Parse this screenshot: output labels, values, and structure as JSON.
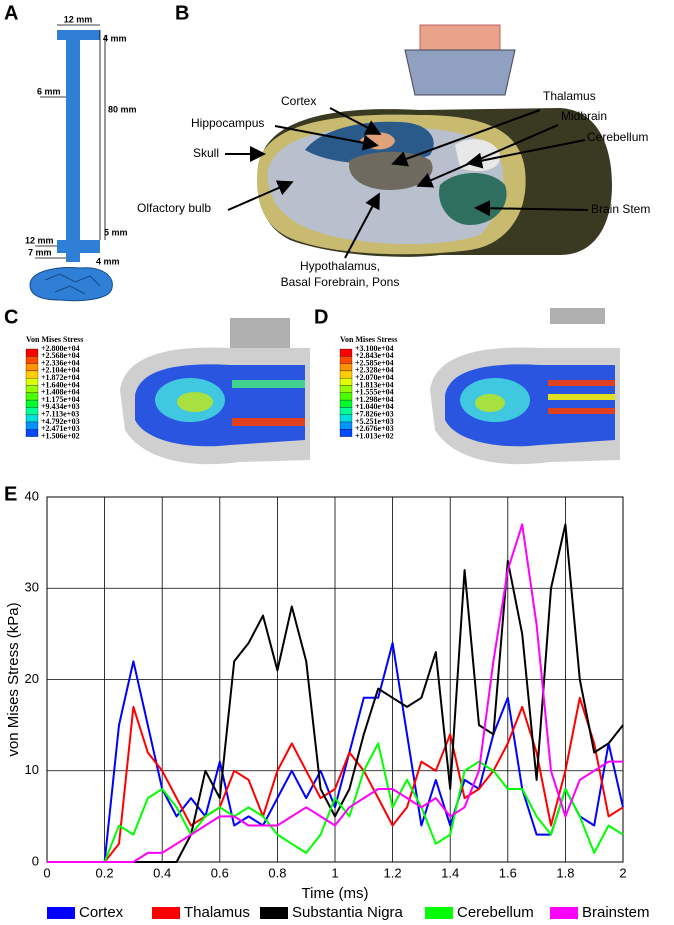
{
  "panels": {
    "letters": [
      "A",
      "B",
      "C",
      "D",
      "E"
    ],
    "a": {
      "dims": [
        "12 mm",
        "4 mm",
        "6 mm",
        "80 mm",
        "5 mm",
        "12 mm",
        "7 mm",
        "4 mm"
      ]
    },
    "b": {
      "labels": [
        "Cortex",
        "Hippocampus",
        "Skull",
        "Olfactory bulb",
        "Thalamus",
        "Midbrain",
        "Cerebellum",
        "Brain Stem",
        "Hypothalamus,",
        "Basal Forebrain, Pons"
      ]
    },
    "c": {
      "legend_title": "Von Mises Stress",
      "levels": [
        "+2.800e+04",
        "+2.568e+04",
        "+2.336e+04",
        "+2.104e+04",
        "+1.872e+04",
        "+1.640e+04",
        "+1.408e+04",
        "+1.175e+04",
        "+9.434e+03",
        "+7.113e+03",
        "+4.792e+03",
        "+2.471e+03",
        "+1.506e+02"
      ]
    },
    "d": {
      "legend_title": "Von Mises Stress",
      "levels": [
        "+3.100e+04",
        "+2.843e+04",
        "+2.585e+04",
        "+2.328e+04",
        "+2.070e+04",
        "+1.813e+04",
        "+1.555e+04",
        "+1.298e+04",
        "+1.040e+04",
        "+7.826e+03",
        "+5.251e+03",
        "+2.676e+03",
        "+1.013e+02"
      ]
    },
    "colorbar_colors": [
      "#ff0000",
      "#ff4a00",
      "#ff9400",
      "#ffcc00",
      "#e0ff00",
      "#94ff00",
      "#4aff00",
      "#00ff2a",
      "#00ff94",
      "#00e0e0",
      "#0094ff",
      "#004aff",
      "#0000ff"
    ]
  },
  "chart_data": {
    "type": "line",
    "xlabel": "Time (ms)",
    "ylabel": "von Mises Stress (kPa)",
    "xlim": [
      0,
      2
    ],
    "ylim": [
      0,
      40
    ],
    "xticks": [
      0,
      0.2,
      0.4,
      0.6,
      0.8,
      1,
      1.2,
      1.4,
      1.6,
      1.8,
      2
    ],
    "yticks": [
      0,
      10,
      20,
      30,
      40
    ],
    "grid": true,
    "x": [
      0,
      0.05,
      0.1,
      0.15,
      0.2,
      0.25,
      0.3,
      0.35,
      0.4,
      0.45,
      0.5,
      0.55,
      0.6,
      0.65,
      0.7,
      0.75,
      0.8,
      0.85,
      0.9,
      0.95,
      1,
      1.05,
      1.1,
      1.15,
      1.2,
      1.25,
      1.3,
      1.35,
      1.4,
      1.45,
      1.5,
      1.55,
      1.6,
      1.65,
      1.7,
      1.75,
      1.8,
      1.85,
      1.9,
      1.95,
      2
    ],
    "series": [
      {
        "name": "Cortex",
        "color": "#0000ff",
        "values": [
          0,
          0,
          0,
          0,
          0,
          15,
          22,
          15,
          8,
          5,
          7,
          5,
          11,
          4,
          5,
          4,
          7,
          10,
          7,
          10,
          6,
          12,
          18,
          18,
          24,
          14,
          4,
          9,
          4,
          9,
          8,
          14,
          18,
          8,
          3,
          3,
          8,
          5,
          4,
          13,
          6
        ]
      },
      {
        "name": "Thalamus",
        "color": "#ff0000",
        "values": [
          0,
          0,
          0,
          0,
          0,
          2,
          17,
          12,
          10,
          7,
          4,
          5,
          6,
          10,
          9,
          5,
          10,
          13,
          10,
          7,
          8,
          12,
          10,
          7,
          4,
          6,
          11,
          10,
          14,
          7,
          8,
          10,
          13,
          17,
          12,
          4,
          10,
          18,
          13,
          5,
          6
        ]
      },
      {
        "name": "Substantia Nigra",
        "color": "#000000",
        "values": [
          0,
          0,
          0,
          0,
          0,
          0,
          0,
          0,
          0,
          0,
          3,
          10,
          7,
          22,
          24,
          27,
          21,
          28,
          22,
          8,
          5,
          8,
          14,
          19,
          18,
          17,
          18,
          23,
          8,
          32,
          15,
          14,
          33,
          25,
          9,
          30,
          37,
          20,
          12,
          13,
          15
        ]
      },
      {
        "name": "Cerebellum",
        "color": "#00ff00",
        "values": [
          0,
          0,
          0,
          0,
          0,
          4,
          3,
          7,
          8,
          6,
          3,
          5,
          6,
          5,
          6,
          5,
          3,
          2,
          1,
          3,
          7,
          5,
          10,
          13,
          6,
          9,
          6,
          2,
          3,
          10,
          11,
          10,
          8,
          8,
          5,
          3,
          8,
          5,
          1,
          4,
          3
        ]
      },
      {
        "name": "Brainstem",
        "color": "#ff00ff",
        "values": [
          0,
          0,
          0,
          0,
          0,
          0,
          0,
          1,
          1,
          2,
          3,
          4,
          5,
          5,
          4,
          4,
          4,
          5,
          6,
          5,
          4,
          6,
          7,
          8,
          8,
          7,
          6,
          7,
          5,
          6,
          10,
          22,
          32,
          37,
          26,
          10,
          5,
          9,
          10,
          11,
          11
        ]
      }
    ]
  }
}
